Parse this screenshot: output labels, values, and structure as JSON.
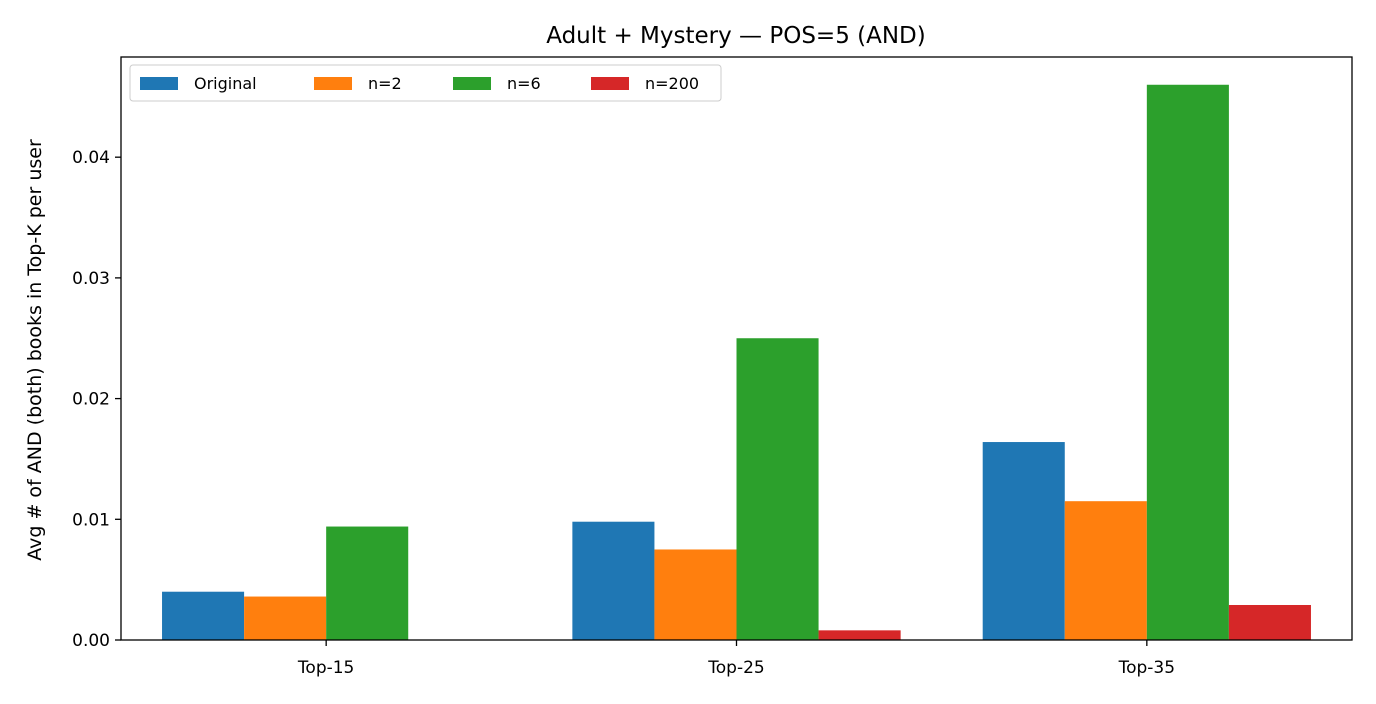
{
  "chart_data": {
    "type": "bar",
    "title": "Adult + Mystery — POS=5 (AND)",
    "xlabel": "",
    "ylabel": "Avg # of AND (both) books in Top-K per user",
    "categories": [
      "Top-15",
      "Top-25",
      "Top-35"
    ],
    "series": [
      {
        "name": "Original",
        "color": "#1f77b4",
        "values": [
          0.004,
          0.0098,
          0.0164
        ]
      },
      {
        "name": "n=2",
        "color": "#ff7f0e",
        "values": [
          0.0036,
          0.0075,
          0.0115
        ]
      },
      {
        "name": "n=6",
        "color": "#2ca02c",
        "values": [
          0.0094,
          0.025,
          0.046
        ]
      },
      {
        "name": "n=200",
        "color": "#d62728",
        "values": [
          0.0,
          0.0008,
          0.0029
        ]
      }
    ],
    "ylim": [
      0,
      0.0483
    ],
    "yticks": [
      0,
      0.01,
      0.02,
      0.03,
      0.04
    ],
    "ytick_labels": [
      "0.00",
      "0.01",
      "0.02",
      "0.03",
      "0.04"
    ],
    "legend": {
      "placement": "top-left",
      "columns": 4
    },
    "grid": false
  }
}
